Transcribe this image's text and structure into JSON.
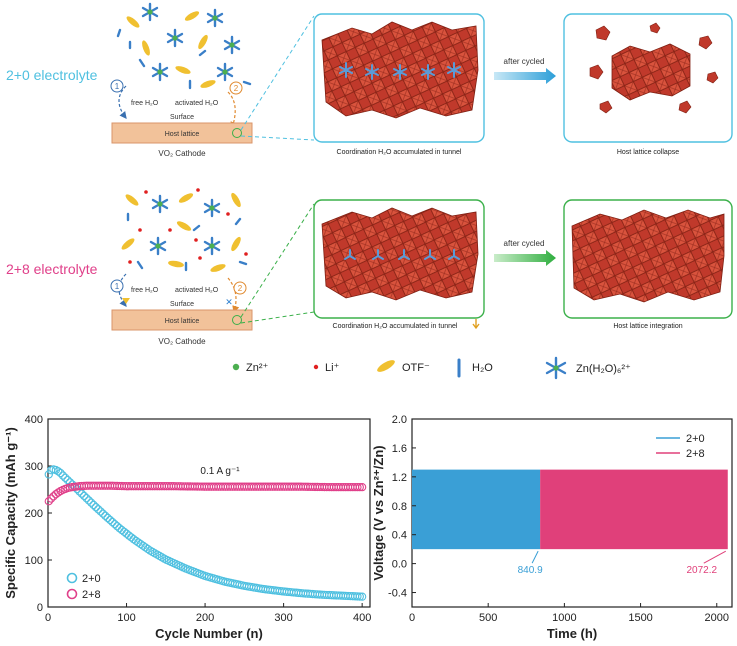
{
  "schematic": {
    "row1": {
      "electrolyte_label": "2+0 electrolyte",
      "free_h2o": "free H₂O",
      "activated_h2o": "activated H₂O",
      "surface": "Surface",
      "host_lattice": "Host lattice",
      "cathode": "VO₂ Cathode",
      "arrow_label": "after cycled",
      "caption_middle": "Coordination H₂O accumulated in tunnel",
      "caption_right": "Host lattice collapse",
      "step1": "1",
      "step2": "2"
    },
    "row2": {
      "electrolyte_label": "2+8 electrolyte",
      "free_h2o": "free H₂O",
      "activated_h2o": "activated H₂O",
      "surface": "Surface",
      "host_lattice": "Host lattice",
      "cathode": "VO₂ Cathode",
      "arrow_label": "after cycled",
      "caption_middle": "Coordination H₂O accumulated in tunnel",
      "caption_right": "Host lattice integration",
      "step1": "1",
      "step2": "2"
    },
    "legend": {
      "zn": "Zn²⁺",
      "li": "Li⁺",
      "otf": "OTF⁻",
      "h2o": "H₂O",
      "complex": "Zn(H₂O)₆²⁺"
    }
  },
  "colors": {
    "cyan": "#4fc0e0",
    "magenta": "#e0408a",
    "crystal": "#c0392b",
    "crystal_dark": "#8e2418",
    "green": "#3bb04a",
    "cathode_fill": "#f2c29a"
  },
  "chart_data": [
    {
      "type": "scatter",
      "title": "",
      "annotation": "0.1 A g⁻¹",
      "xlabel": "Cycle Number (n)",
      "ylabel": "Specific Capacity (mAh g⁻¹)",
      "xlim": [
        0,
        410
      ],
      "ylim": [
        0,
        400
      ],
      "xticks": [
        "0",
        "100",
        "200",
        "300",
        "400"
      ],
      "yticks": [
        "0",
        "100",
        "200",
        "300",
        "400"
      ],
      "legend_position": "bottom-left",
      "series": [
        {
          "name": "2+0",
          "color": "#4fc0e0",
          "x": [
            1,
            3,
            6,
            9,
            12,
            16,
            20,
            25,
            30,
            40,
            50,
            60,
            75,
            90,
            110,
            130,
            150,
            175,
            200,
            225,
            250,
            275,
            300,
            325,
            350,
            375,
            400
          ],
          "y": [
            282,
            290,
            293,
            292,
            290,
            285,
            278,
            270,
            262,
            246,
            230,
            214,
            191,
            169,
            143,
            120,
            101,
            82,
            66,
            54,
            45,
            38,
            33,
            29,
            26,
            24,
            22
          ]
        },
        {
          "name": "2+8",
          "color": "#e0408a",
          "x": [
            1,
            3,
            6,
            10,
            15,
            20,
            25,
            30,
            40,
            50,
            60,
            80,
            100,
            130,
            160,
            200,
            240,
            280,
            320,
            360,
            400
          ],
          "y": [
            225,
            229,
            234,
            240,
            246,
            250,
            253,
            255,
            257,
            258,
            258,
            258,
            257,
            257,
            257,
            256,
            256,
            256,
            256,
            255,
            255
          ]
        }
      ]
    },
    {
      "type": "area",
      "title": "",
      "xlabel": "Time (h)",
      "ylabel": "Voltage (V vs Zn²⁺/Zn)",
      "xlim": [
        0,
        2100
      ],
      "ylim": [
        -0.6,
        2.0
      ],
      "xticks": [
        "0",
        "500",
        "1000",
        "1500",
        "2000"
      ],
      "yticks": [
        "-0.4",
        "0.0",
        "0.4",
        "0.8",
        "1.2",
        "1.6",
        "2.0"
      ],
      "legend_position": "top-right",
      "voltage_window": [
        0.2,
        1.3
      ],
      "series": [
        {
          "name": "2+0",
          "color": "#3a9fd6",
          "end_time": 840.9,
          "end_label": "840.9"
        },
        {
          "name": "2+8",
          "color": "#e0407a",
          "end_time": 2072.2,
          "end_label": "2072.2"
        }
      ]
    }
  ]
}
